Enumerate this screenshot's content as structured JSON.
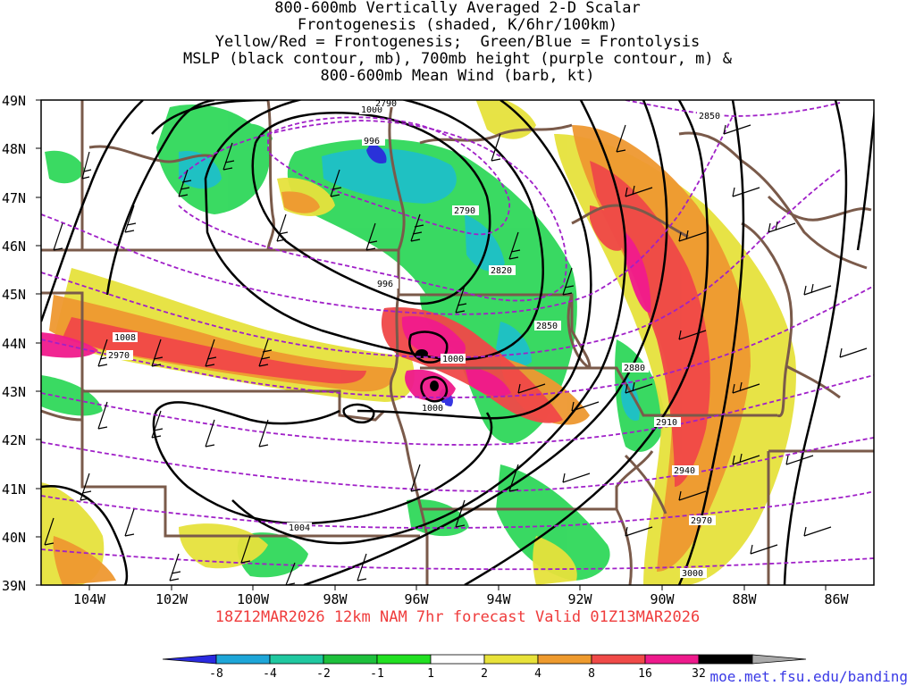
{
  "title": {
    "lines": [
      "800-600mb Vertically Averaged 2-D Scalar",
      "Frontogenesis (shaded, K/6hr/100km)",
      "Yellow/Red = Frontogenesis;  Green/Blue = Frontolysis",
      "MSLP (black contour, mb), 700mb height (purple contour, m) &",
      "800-600mb Mean Wind (barb, kt)"
    ]
  },
  "axes": {
    "lat_labels": [
      "49N",
      "48N",
      "47N",
      "46N",
      "45N",
      "44N",
      "43N",
      "42N",
      "41N",
      "40N",
      "39N"
    ],
    "lon_labels": [
      "104W",
      "102W",
      "100W",
      "98W",
      "96W",
      "94W",
      "92W",
      "90W",
      "88W",
      "86W"
    ]
  },
  "contour_labels": {
    "pressure": [
      "1000",
      "996",
      "996",
      "1008",
      "1000",
      "1000",
      "1004"
    ],
    "height": [
      "2790",
      "2790",
      "2820",
      "2850",
      "2850",
      "2880",
      "2910",
      "2940",
      "2970",
      "2970",
      "3000"
    ]
  },
  "footer": {
    "run_info": "18Z12MAR2026 12km NAM 7hr forecast Valid 01Z13MAR2026",
    "credit": "moe.met.fsu.edu/banding"
  },
  "colorbar": {
    "labels": [
      "-8",
      "-4",
      "-2",
      "-1",
      "1",
      "2",
      "4",
      "8",
      "16",
      "32"
    ],
    "colors": [
      "#2a2ae0",
      "#1ea6d8",
      "#20c8a0",
      "#1ec03c",
      "#22e022",
      "#ffffff",
      "#e8e23a",
      "#ee9a2e",
      "#f04a48",
      "#ee1a8c",
      "#000000",
      "#aaaaaa"
    ]
  },
  "colors": {
    "frontolysis_strong": "#1ec0c8",
    "frontolysis": "#2fd85a",
    "frontogenesis_weak": "#e6e23c",
    "frontogenesis": "#ee9830",
    "frontogenesis_strong": "#f04848",
    "frontogenesis_max": "#f01a8c",
    "pressure_contour": "#000000",
    "height_contour": "#a020c8",
    "borders": "#7a5a4a",
    "footer_text": "#ef3b3b",
    "credit_text": "#3a3ae6"
  }
}
